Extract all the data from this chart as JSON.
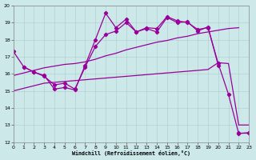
{
  "background_color": "#cce8e8",
  "line_color": "#990099",
  "xlabel": "Windchill (Refroidissement éolien,°C)",
  "xlim": [
    0,
    23
  ],
  "ylim": [
    12,
    20
  ],
  "yticks": [
    12,
    13,
    14,
    15,
    16,
    17,
    18,
    19,
    20
  ],
  "xticks": [
    0,
    1,
    2,
    3,
    4,
    5,
    6,
    7,
    8,
    9,
    10,
    11,
    12,
    13,
    14,
    15,
    16,
    17,
    18,
    19,
    20,
    21,
    22,
    23
  ],
  "line1_x": [
    0,
    1,
    2,
    3,
    4,
    5,
    6,
    7,
    8,
    9,
    10,
    11,
    12,
    13,
    14,
    15,
    16,
    17,
    18,
    19,
    20,
    21,
    22,
    23
  ],
  "line1_y": [
    17.3,
    16.4,
    16.1,
    15.9,
    15.1,
    15.2,
    15.05,
    16.5,
    18.0,
    19.55,
    18.7,
    19.2,
    18.45,
    18.7,
    18.65,
    19.35,
    19.1,
    19.0,
    18.6,
    18.7,
    16.6,
    14.8,
    12.5,
    12.55
  ],
  "line2_x": [
    1,
    2,
    3,
    4,
    5,
    6,
    7,
    8,
    9,
    10,
    11,
    12,
    13,
    14,
    15,
    16,
    17,
    18,
    19,
    20,
    21,
    22,
    23
  ],
  "line2_y": [
    16.4,
    16.1,
    15.85,
    15.35,
    15.45,
    15.1,
    16.4,
    17.6,
    18.3,
    18.5,
    19.0,
    18.45,
    18.65,
    18.45,
    19.3,
    19.0,
    19.05,
    18.5,
    18.75,
    16.5,
    null,
    12.55,
    12.55
  ],
  "line3_x": [
    0,
    1,
    2,
    3,
    4,
    5,
    6,
    7,
    8,
    9,
    10,
    11,
    12,
    13,
    14,
    15,
    16,
    17,
    18,
    19,
    20,
    21,
    22
  ],
  "line3_y": [
    15.9,
    16.05,
    16.2,
    16.35,
    16.45,
    16.55,
    16.6,
    16.7,
    16.85,
    17.05,
    17.2,
    17.4,
    17.55,
    17.7,
    17.85,
    17.95,
    18.1,
    18.2,
    18.35,
    18.45,
    18.55,
    18.65,
    18.7
  ],
  "line4_x": [
    0,
    1,
    2,
    3,
    4,
    5,
    6,
    7,
    8,
    9,
    10,
    11,
    12,
    13,
    14,
    15,
    16,
    17,
    18,
    19,
    20,
    21,
    22,
    23
  ],
  "line4_y": [
    15.0,
    15.15,
    15.3,
    15.45,
    15.5,
    15.55,
    15.6,
    15.65,
    15.7,
    15.75,
    15.8,
    15.85,
    15.9,
    15.95,
    16.0,
    16.05,
    16.1,
    16.15,
    16.2,
    16.25,
    16.65,
    16.6,
    13.0,
    13.0
  ],
  "linewidth": 0.9,
  "markersize": 2.2,
  "marker": "D"
}
